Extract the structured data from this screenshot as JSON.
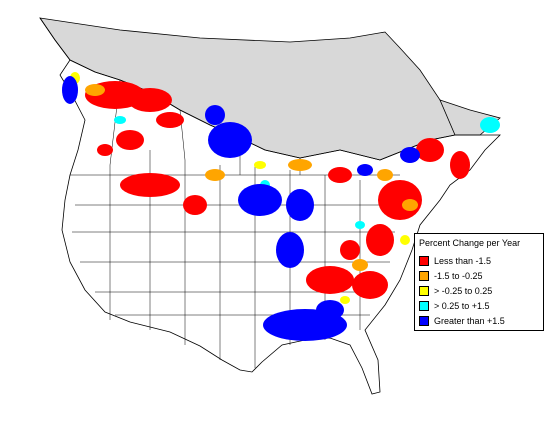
{
  "legend": {
    "title": "Percent Change per Year",
    "items": [
      {
        "label": "Less than -1.5",
        "color": "#ff0000"
      },
      {
        "label": "-1.5 to -0.25",
        "color": "#ffa500"
      },
      {
        "label": "> -0.25 to 0.25",
        "color": "#ffff00"
      },
      {
        "label": "> 0.25 to +1.5",
        "color": "#00ffff"
      },
      {
        "label": "Greater than +1.5",
        "color": "#0000ff"
      }
    ]
  },
  "map": {
    "no_data_color": "#d8d8d8",
    "boundary_color": "#000000",
    "background_color": "#ffffff"
  }
}
